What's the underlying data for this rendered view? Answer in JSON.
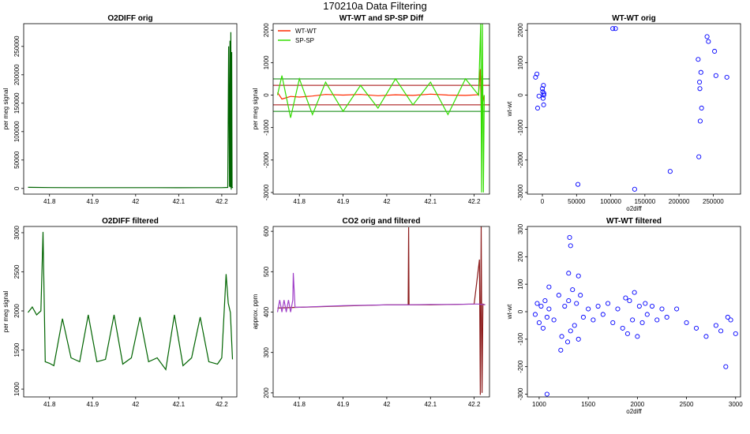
{
  "figure_title": "170210a   Data Filtering",
  "chart_data": [
    {
      "id": "o2diff-orig",
      "type": "line",
      "title": "O2DIFF orig",
      "xlabel": "",
      "ylabel": "per meg signal",
      "xlim": [
        41.74,
        42.235
      ],
      "ylim": [
        -10000,
        290000
      ],
      "xticks": [
        41.8,
        41.9,
        42.0,
        42.1,
        42.2
      ],
      "yticks": [
        0,
        50000,
        100000,
        150000,
        200000,
        250000
      ],
      "series": [
        {
          "name": "O2DIFF",
          "color": "#006400",
          "x": [
            41.75,
            41.8,
            41.85,
            41.9,
            41.95,
            42.0,
            42.05,
            42.1,
            42.15,
            42.2,
            42.214,
            42.216,
            42.218,
            42.219,
            42.22,
            42.221,
            42.222,
            42.223,
            42.224,
            42.226
          ],
          "y": [
            1900,
            1500,
            1350,
            1400,
            1350,
            1400,
            1350,
            1300,
            1400,
            1350,
            1800,
            250000,
            3000,
            260000,
            2000,
            275000,
            -2000,
            240000,
            1800,
            1500
          ]
        }
      ]
    },
    {
      "id": "wtwt-spsp-diff",
      "type": "line",
      "title": "WT-WT and SP-SP Diff",
      "xlabel": "",
      "ylabel": "per meg signal",
      "xlim": [
        41.74,
        42.235
      ],
      "ylim": [
        -3050,
        2200
      ],
      "xticks": [
        41.8,
        41.9,
        42.0,
        42.1,
        42.2
      ],
      "yticks": [
        -3000,
        -2000,
        -1000,
        0,
        1000,
        2000
      ],
      "legend": [
        "WT-WT",
        "SP-SP"
      ],
      "hlines_red": [
        300,
        -300
      ],
      "hlines_green": [
        500,
        -500
      ],
      "series": [
        {
          "name": "WT-WT",
          "color": "#ff2a00",
          "x": [
            41.75,
            41.76,
            41.78,
            41.8,
            41.83,
            41.86,
            41.9,
            41.94,
            41.98,
            42.02,
            42.06,
            42.1,
            42.14,
            42.18,
            42.21,
            42.214,
            42.216,
            42.218,
            42.22,
            42.223
          ],
          "y": [
            80,
            -120,
            -40,
            -60,
            -30,
            20,
            0,
            20,
            -20,
            10,
            -10,
            30,
            0,
            -10,
            10,
            800,
            -400,
            600,
            -200,
            0
          ]
        },
        {
          "name": "SP-SP",
          "color": "#33dd00",
          "x": [
            41.75,
            41.76,
            41.78,
            41.8,
            41.83,
            41.86,
            41.9,
            41.94,
            41.98,
            42.02,
            42.06,
            42.1,
            42.14,
            42.18,
            42.21,
            42.215,
            42.217,
            42.219,
            42.221,
            42.223
          ],
          "y": [
            0,
            600,
            -700,
            500,
            -600,
            400,
            -500,
            300,
            -400,
            500,
            -300,
            400,
            -600,
            500,
            0,
            2200,
            -3000,
            2200,
            -3000,
            0
          ]
        }
      ]
    },
    {
      "id": "wtwt-orig",
      "type": "scatter",
      "title": "WT-WT orig",
      "xlabel": "o2diff",
      "ylabel": "wt-wt",
      "xlim": [
        -22000,
        290000
      ],
      "ylim": [
        -3050,
        2200
      ],
      "xticks": [
        0,
        50000,
        100000,
        150000,
        200000,
        250000
      ],
      "yticks": [
        -3000,
        -2000,
        -1000,
        0,
        1000,
        2000
      ],
      "series": [
        {
          "name": "WT-WT",
          "color": "#0000ff",
          "x": [
            -10000,
            -8000,
            -7000,
            -5000,
            0,
            500,
            1000,
            1500,
            1800,
            2000,
            2200,
            52000,
            103000,
            107000,
            135000,
            187000,
            228000,
            229000,
            230000,
            230500,
            231000,
            232000,
            233000,
            241000,
            243000,
            252000,
            254000,
            270000
          ],
          "y": [
            550,
            650,
            -400,
            -30,
            200,
            100,
            -100,
            300,
            -300,
            0,
            50,
            -2750,
            2050,
            2050,
            -2900,
            -2350,
            1100,
            -1900,
            400,
            200,
            -800,
            700,
            -400,
            1800,
            1650,
            1350,
            600,
            550
          ]
        }
      ]
    },
    {
      "id": "o2diff-filtered",
      "type": "line",
      "title": "O2DIFF filtered",
      "xlabel": "",
      "ylabel": "per meg signal",
      "xlim": [
        41.74,
        42.235
      ],
      "ylim": [
        900,
        3080
      ],
      "xticks": [
        41.8,
        41.9,
        42.0,
        42.1,
        42.2
      ],
      "yticks": [
        1000,
        1500,
        2000,
        2500,
        3000
      ],
      "series": [
        {
          "name": "O2DIFF filtered",
          "color": "#006400",
          "x": [
            41.75,
            41.76,
            41.77,
            41.78,
            41.785,
            41.79,
            41.8,
            41.81,
            41.83,
            41.85,
            41.87,
            41.89,
            41.91,
            41.93,
            41.95,
            41.97,
            41.99,
            42.01,
            42.03,
            42.05,
            42.07,
            42.09,
            42.11,
            42.13,
            42.15,
            42.17,
            42.19,
            42.2,
            42.21,
            42.215,
            42.22,
            42.225
          ],
          "y": [
            1980,
            2050,
            1950,
            2000,
            3010,
            1350,
            1330,
            1300,
            1900,
            1400,
            1350,
            1950,
            1350,
            1380,
            1950,
            1320,
            1400,
            1920,
            1350,
            1400,
            1250,
            1950,
            1300,
            1400,
            1920,
            1350,
            1320,
            1400,
            2470,
            2100,
            1980,
            1380
          ]
        }
      ]
    },
    {
      "id": "co2-orig-filtered",
      "type": "line",
      "title": "CO2 orig and filtered",
      "xlabel": "",
      "ylabel": "approx. ppm",
      "xlim": [
        41.74,
        42.235
      ],
      "ylim": [
        190,
        612
      ],
      "xticks": [
        41.8,
        41.9,
        42.0,
        42.1,
        42.2
      ],
      "yticks": [
        200,
        300,
        400,
        500,
        600
      ],
      "series": [
        {
          "name": "CO2 orig",
          "color": "#8b1a1a",
          "x": [
            41.75,
            41.8,
            41.9,
            42.0,
            42.049,
            42.05,
            42.051,
            42.1,
            42.2,
            42.212,
            42.214,
            42.216,
            42.218,
            42.22,
            42.225
          ],
          "y": [
            410,
            412,
            415,
            418,
            418,
            610,
            418,
            418,
            420,
            530,
            195,
            612,
            200,
            420,
            418
          ]
        },
        {
          "name": "CO2 filtered",
          "color": "#a040c8",
          "x": [
            41.75,
            41.755,
            41.76,
            41.765,
            41.77,
            41.775,
            41.78,
            41.785,
            41.786,
            41.79,
            41.8,
            41.85,
            41.9,
            41.95,
            42.0,
            42.05,
            42.1,
            42.15,
            42.2,
            42.21,
            42.225
          ],
          "y": [
            400,
            430,
            400,
            430,
            400,
            430,
            400,
            430,
            497,
            412,
            412,
            414,
            416,
            417,
            418,
            418,
            419,
            419,
            420,
            420,
            418
          ]
        }
      ]
    },
    {
      "id": "wtwt-filtered",
      "type": "scatter",
      "title": "WT-WT filtered",
      "xlabel": "o2diff",
      "ylabel": "wt-wt",
      "xlim": [
        880,
        3050
      ],
      "ylim": [
        -310,
        310
      ],
      "xticks": [
        1000,
        1500,
        2000,
        2500,
        3000
      ],
      "yticks": [
        -300,
        -200,
        -100,
        0,
        100,
        200,
        300
      ],
      "series": [
        {
          "name": "WT-WT filtered",
          "color": "#0000ff",
          "x": [
            960,
            980,
            1000,
            1020,
            1040,
            1060,
            1080,
            1100,
            1150,
            1200,
            1230,
            1260,
            1290,
            1300,
            1320,
            1340,
            1360,
            1380,
            1400,
            1420,
            1450,
            1500,
            1550,
            1600,
            1650,
            1700,
            1750,
            1800,
            1850,
            1880,
            1900,
            1920,
            1950,
            1970,
            2000,
            2020,
            2050,
            2080,
            2100,
            2150,
            2200,
            2250,
            2300,
            2400,
            2500,
            2600,
            2700,
            2800,
            2850,
            2900,
            2920,
            2950,
            3000,
            1080,
            1310,
            1400,
            1320,
            1300,
            1100,
            1220
          ],
          "y": [
            -10,
            30,
            -40,
            20,
            -60,
            40,
            -20,
            10,
            -30,
            60,
            -90,
            20,
            -110,
            40,
            -70,
            80,
            -50,
            30,
            -100,
            60,
            -20,
            10,
            -30,
            20,
            -10,
            30,
            -40,
            10,
            -60,
            50,
            -80,
            40,
            -30,
            70,
            -90,
            20,
            -40,
            30,
            -10,
            20,
            -30,
            10,
            -20,
            10,
            -40,
            -60,
            -90,
            -50,
            -70,
            -200,
            -20,
            -30,
            -80,
            -300,
            270,
            130,
            240,
            140,
            90,
            -140
          ]
        }
      ]
    }
  ]
}
